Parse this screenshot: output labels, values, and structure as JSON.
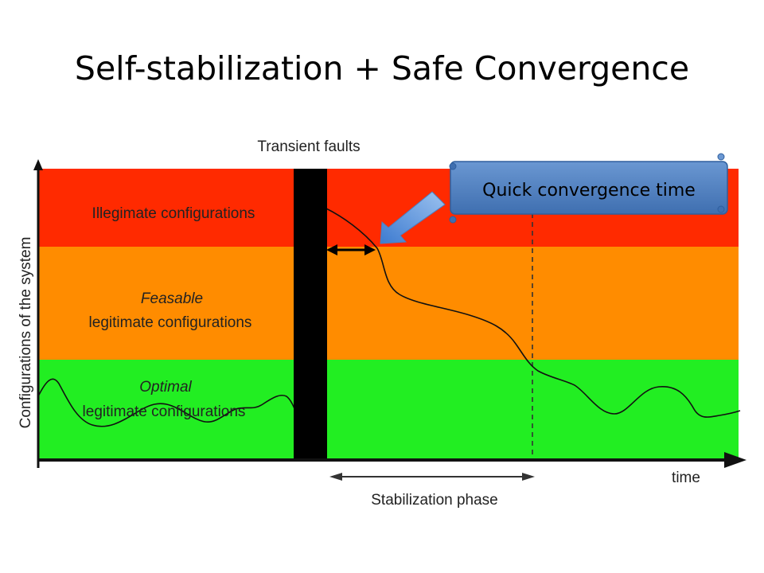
{
  "slide": {
    "title": "Self-stabilization + Safe Convergence"
  },
  "diagram": {
    "transient_faults_label": "Transient faults",
    "y_axis_label": "Configurations of the system",
    "x_axis_label": "time",
    "stabilization_label": "Stabilization phase",
    "zones": {
      "illegitimate": "Illegimate configurations",
      "feasable_line1": "Feasable",
      "feasable_line2": "legitimate configurations",
      "optimal_line1": "Optimal",
      "optimal_line2": "legitimate configurations"
    },
    "callout": "Quick convergence time",
    "colors": {
      "illegitimate": "#ff2a00",
      "feasable": "#ff8c00",
      "optimal": "#22ee22",
      "callout_fill": "#4f81bd",
      "arrow_fill": "#5b9bd5"
    }
  }
}
